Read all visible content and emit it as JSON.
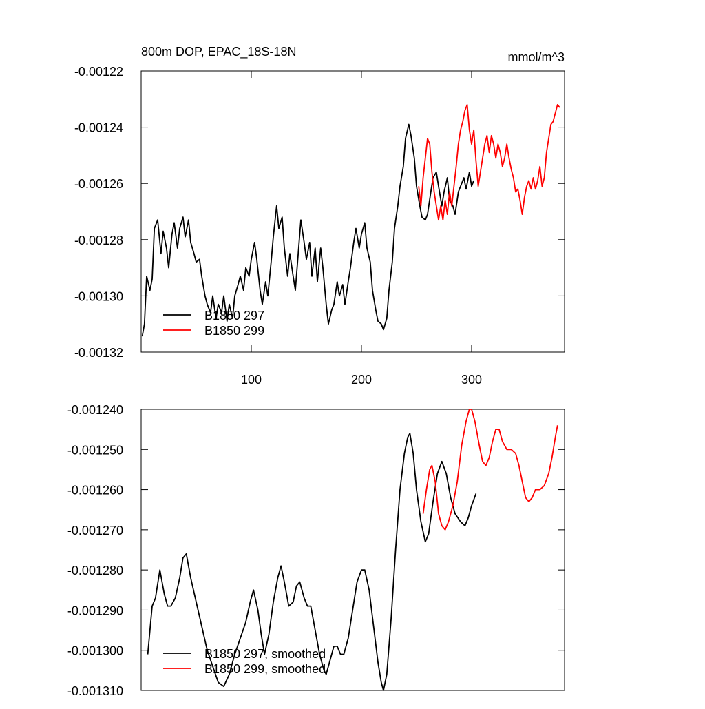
{
  "chart_data": [
    {
      "type": "line",
      "title": "800m DOP, EPAC_18S-18N",
      "units": "mmol/m^3",
      "xlim": [
        0,
        384.4
      ],
      "xticks": [
        100,
        200,
        300
      ],
      "ylim": [
        -0.00132,
        -0.00122
      ],
      "yticks": [
        -0.00122,
        -0.00124,
        -0.00126,
        -0.00128,
        {
          "value": -0.0013,
          "label": "-0.00130"
        },
        -0.00132
      ],
      "legend": "lower left",
      "series": [
        {
          "name": "B1850 297",
          "color": "#000000",
          "x": [
            1,
            3,
            5,
            8,
            10,
            12,
            15,
            18,
            20,
            23,
            25,
            28,
            30,
            33,
            35,
            38,
            40,
            43,
            45,
            48,
            50,
            53,
            55,
            58,
            60,
            63,
            65,
            68,
            70,
            73,
            75,
            78,
            80,
            83,
            85,
            88,
            90,
            93,
            95,
            98,
            100,
            103,
            105,
            108,
            110,
            113,
            115,
            118,
            120,
            123,
            125,
            128,
            130,
            133,
            135,
            138,
            140,
            143,
            145,
            148,
            150,
            153,
            155,
            158,
            160,
            163,
            165,
            168,
            170,
            173,
            175,
            178,
            180,
            183,
            185,
            188,
            190,
            193,
            195,
            198,
            200,
            203,
            205,
            208,
            210,
            213,
            215,
            218,
            220,
            223,
            225,
            228,
            230,
            233,
            235,
            238,
            240,
            243,
            245,
            248,
            250,
            253,
            255,
            258,
            260,
            263,
            265,
            268,
            270,
            273,
            275,
            278,
            280,
            283,
            285,
            288,
            290,
            293,
            295,
            298,
            300,
            302
          ],
          "values": [
            -0.0013144,
            -0.00131,
            -0.001293,
            -0.001298,
            -0.001294,
            -0.001276,
            -0.001273,
            -0.001285,
            -0.001277,
            -0.001283,
            -0.00129,
            -0.001278,
            -0.001274,
            -0.001283,
            -0.001276,
            -0.001272,
            -0.001279,
            -0.001273,
            -0.001281,
            -0.001285,
            -0.001288,
            -0.001287,
            -0.001293,
            -0.0013,
            -0.001303,
            -0.001306,
            -0.0013,
            -0.001308,
            -0.001303,
            -0.001306,
            -0.0013,
            -0.001309,
            -0.001303,
            -0.001308,
            -0.0013,
            -0.001296,
            -0.001293,
            -0.001298,
            -0.00129,
            -0.001293,
            -0.001287,
            -0.001281,
            -0.001287,
            -0.001298,
            -0.001303,
            -0.001295,
            -0.0013,
            -0.001288,
            -0.001279,
            -0.001268,
            -0.001276,
            -0.001272,
            -0.001283,
            -0.001293,
            -0.001285,
            -0.001293,
            -0.001298,
            -0.001283,
            -0.001273,
            -0.001281,
            -0.001287,
            -0.001281,
            -0.001293,
            -0.001283,
            -0.001295,
            -0.001283,
            -0.00129,
            -0.001303,
            -0.00131,
            -0.001305,
            -0.001303,
            -0.001295,
            -0.0013,
            -0.001296,
            -0.001303,
            -0.001295,
            -0.00129,
            -0.001281,
            -0.001276,
            -0.001283,
            -0.001278,
            -0.001274,
            -0.001283,
            -0.001288,
            -0.001298,
            -0.001305,
            -0.001309,
            -0.00131,
            -0.001312,
            -0.001308,
            -0.001298,
            -0.001288,
            -0.001276,
            -0.001268,
            -0.001261,
            -0.001254,
            -0.001244,
            -0.001239,
            -0.001243,
            -0.001251,
            -0.001261,
            -0.001268,
            -0.001272,
            -0.001273,
            -0.001271,
            -0.001263,
            -0.001258,
            -0.001256,
            -0.001261,
            -0.001268,
            -0.001263,
            -0.001258,
            -0.001266,
            -0.001268,
            -0.001271,
            -0.001263,
            -0.001261,
            -0.001258,
            -0.001262,
            -0.001256,
            -0.001261,
            -0.001259
          ]
        },
        {
          "name": "B1850 299",
          "color": "#ff0000",
          "x": [
            252,
            254,
            256,
            258,
            260,
            262,
            264,
            266,
            268,
            270,
            272,
            274,
            276,
            278,
            280,
            282,
            284,
            286,
            288,
            290,
            292,
            294,
            296,
            298,
            300,
            302,
            304,
            306,
            308,
            310,
            312,
            314,
            316,
            318,
            320,
            322,
            324,
            326,
            328,
            330,
            332,
            334,
            336,
            338,
            340,
            342,
            344,
            346,
            348,
            350,
            352,
            354,
            356,
            358,
            360,
            362,
            364,
            366,
            368,
            370,
            372,
            374,
            376,
            378,
            380
          ],
          "values": [
            -0.001261,
            -0.001268,
            -0.001258,
            -0.001251,
            -0.001244,
            -0.001246,
            -0.001256,
            -0.001263,
            -0.001268,
            -0.001273,
            -0.001268,
            -0.001273,
            -0.001266,
            -0.001271,
            -0.001263,
            -0.001268,
            -0.001261,
            -0.001254,
            -0.001246,
            -0.001241,
            -0.001238,
            -0.001234,
            -0.001232,
            -0.001241,
            -0.001246,
            -0.001241,
            -0.001252,
            -0.001261,
            -0.001256,
            -0.001251,
            -0.001246,
            -0.001243,
            -0.001249,
            -0.001243,
            -0.001246,
            -0.001251,
            -0.001246,
            -0.001249,
            -0.001254,
            -0.001251,
            -0.001246,
            -0.001251,
            -0.001255,
            -0.001258,
            -0.001263,
            -0.001262,
            -0.001266,
            -0.001271,
            -0.001265,
            -0.001261,
            -0.001259,
            -0.001262,
            -0.001258,
            -0.001262,
            -0.001259,
            -0.001254,
            -0.001261,
            -0.001258,
            -0.001249,
            -0.001244,
            -0.001239,
            -0.001238,
            -0.001235,
            -0.001232,
            -0.001233
          ]
        }
      ]
    },
    {
      "type": "line",
      "xlim": [
        0,
        384.4
      ],
      "ylim": [
        -0.00131,
        -0.00124
      ],
      "yticks": [
        {
          "value": -0.00124,
          "label": "-0.001240"
        },
        {
          "value": -0.00125,
          "label": "-0.001250"
        },
        {
          "value": -0.00126,
          "label": "-0.001260"
        },
        {
          "value": -0.00127,
          "label": "-0.001270"
        },
        {
          "value": -0.00128,
          "label": "-0.001280"
        },
        {
          "value": -0.00129,
          "label": "-0.001290"
        },
        {
          "value": -0.0013,
          "label": "-0.001300"
        },
        {
          "value": -0.00131,
          "label": "-0.001310"
        }
      ],
      "legend": "lower left",
      "series": [
        {
          "name": "B1850 297, smoothed",
          "color": "#000000",
          "x": [
            6,
            10,
            13,
            17,
            21,
            24,
            27,
            31,
            35,
            38,
            41,
            45,
            50,
            55,
            60,
            65,
            70,
            75,
            80,
            85,
            90,
            95,
            99,
            102,
            106,
            109,
            112,
            116,
            120,
            124,
            127,
            130,
            134,
            138,
            141,
            144,
            148,
            151,
            154,
            158,
            162,
            166,
            168,
            172,
            175,
            178,
            181,
            184,
            188,
            192,
            196,
            200,
            203,
            207,
            211,
            215,
            218,
            220,
            223,
            227,
            231,
            235,
            239,
            242,
            244,
            247,
            250,
            254,
            258,
            261,
            265,
            269,
            273,
            277,
            281,
            285,
            290,
            294,
            297,
            300,
            304
          ],
          "values": [
            -0.001301,
            -0.001289,
            -0.001287,
            -0.00128,
            -0.001286,
            -0.001289,
            -0.001289,
            -0.001287,
            -0.001282,
            -0.001277,
            -0.001276,
            -0.001282,
            -0.001288,
            -0.001294,
            -0.0013,
            -0.001304,
            -0.001308,
            -0.001309,
            -0.001306,
            -0.001301,
            -0.001297,
            -0.001293,
            -0.001288,
            -0.001285,
            -0.00129,
            -0.001296,
            -0.001301,
            -0.001296,
            -0.001288,
            -0.001282,
            -0.001279,
            -0.001283,
            -0.001289,
            -0.001288,
            -0.001284,
            -0.001283,
            -0.001287,
            -0.001289,
            -0.001289,
            -0.001295,
            -0.001301,
            -0.001305,
            -0.001306,
            -0.001302,
            -0.001299,
            -0.001299,
            -0.001301,
            -0.001301,
            -0.001297,
            -0.00129,
            -0.001283,
            -0.00128,
            -0.00128,
            -0.001285,
            -0.001294,
            -0.001303,
            -0.001308,
            -0.00131,
            -0.001306,
            -0.001292,
            -0.001275,
            -0.00126,
            -0.001251,
            -0.001247,
            -0.001246,
            -0.001251,
            -0.00126,
            -0.001268,
            -0.001273,
            -0.001271,
            -0.001263,
            -0.001256,
            -0.001253,
            -0.001256,
            -0.001262,
            -0.001266,
            -0.001268,
            -0.001269,
            -0.001267,
            -0.001264,
            -0.001261
          ]
        },
        {
          "name": "B1850 299, smoothed",
          "color": "#ff0000",
          "x": [
            256,
            259,
            262,
            264,
            267,
            270,
            273,
            276,
            279,
            283,
            287,
            291,
            295,
            298,
            300,
            303,
            307,
            310,
            313,
            316,
            319,
            322,
            325,
            328,
            332,
            336,
            340,
            343,
            346,
            349,
            352,
            355,
            358,
            362,
            366,
            370,
            373,
            376,
            378
          ],
          "values": [
            -0.001266,
            -0.00126,
            -0.001255,
            -0.001254,
            -0.001258,
            -0.001266,
            -0.001269,
            -0.00127,
            -0.001268,
            -0.001264,
            -0.001258,
            -0.001249,
            -0.001243,
            -0.00124,
            -0.00124,
            -0.001243,
            -0.001249,
            -0.001253,
            -0.001254,
            -0.001252,
            -0.001248,
            -0.001245,
            -0.001245,
            -0.001248,
            -0.00125,
            -0.00125,
            -0.001251,
            -0.001254,
            -0.001258,
            -0.001262,
            -0.001263,
            -0.001262,
            -0.00126,
            -0.00126,
            -0.001259,
            -0.001256,
            -0.001252,
            -0.001247,
            -0.001244
          ]
        }
      ]
    }
  ]
}
